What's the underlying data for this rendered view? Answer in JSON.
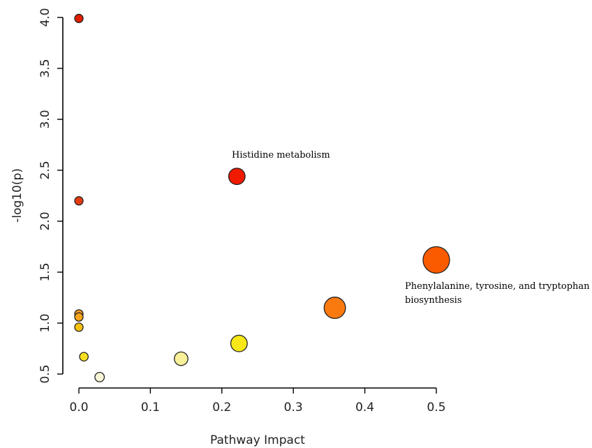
{
  "chart_data": {
    "type": "scatter",
    "title": "",
    "xlabel": "Pathway Impact",
    "ylabel": "-log10(p)",
    "xlim": [
      0.0,
      0.5
    ],
    "ylim": [
      0.5,
      4.0
    ],
    "x_ticks": [
      "0.0",
      "0.1",
      "0.2",
      "0.3",
      "0.4",
      "0.5"
    ],
    "y_ticks": [
      "0.5",
      "1.0",
      "1.5",
      "2.0",
      "2.5",
      "3.0",
      "3.5",
      "4.0"
    ],
    "grid": false,
    "legend": "none",
    "points": [
      {
        "x": 0.0,
        "y": 3.99,
        "impact_size": 0.0,
        "color": "#e01e00"
      },
      {
        "x": 0.221,
        "y": 2.44,
        "impact_size": 0.221,
        "color": "#f01a00"
      },
      {
        "x": 0.0,
        "y": 2.2,
        "impact_size": 0.0,
        "color": "#e43a10"
      },
      {
        "x": 0.5,
        "y": 1.62,
        "impact_size": 0.5,
        "color": "#fa5a00"
      },
      {
        "x": 0.358,
        "y": 1.15,
        "impact_size": 0.358,
        "color": "#fb7a10"
      },
      {
        "x": 0.0,
        "y": 1.09,
        "impact_size": 0.0,
        "color": "#f39a20"
      },
      {
        "x": 0.0,
        "y": 1.06,
        "impact_size": 0.0,
        "color": "#f6a41a"
      },
      {
        "x": 0.0,
        "y": 0.96,
        "impact_size": 0.0,
        "color": "#f8c010"
      },
      {
        "x": 0.224,
        "y": 0.8,
        "impact_size": 0.224,
        "color": "#f8e818"
      },
      {
        "x": 0.007,
        "y": 0.67,
        "impact_size": 0.007,
        "color": "#f8e020"
      },
      {
        "x": 0.143,
        "y": 0.65,
        "impact_size": 0.143,
        "color": "#f8f09a"
      },
      {
        "x": 0.029,
        "y": 0.47,
        "impact_size": 0.029,
        "color": "#f6f4d6"
      }
    ],
    "annotations": [
      {
        "text": "Histidine metabolism",
        "near_x": 0.221,
        "near_y": 2.44
      },
      {
        "text": "Phenylalanine, tyrosine, and tryptophan",
        "near_x": 0.5,
        "near_y": 1.62
      },
      {
        "text": "biosynthesis",
        "near_x": 0.5,
        "near_y": 1.62
      }
    ]
  }
}
